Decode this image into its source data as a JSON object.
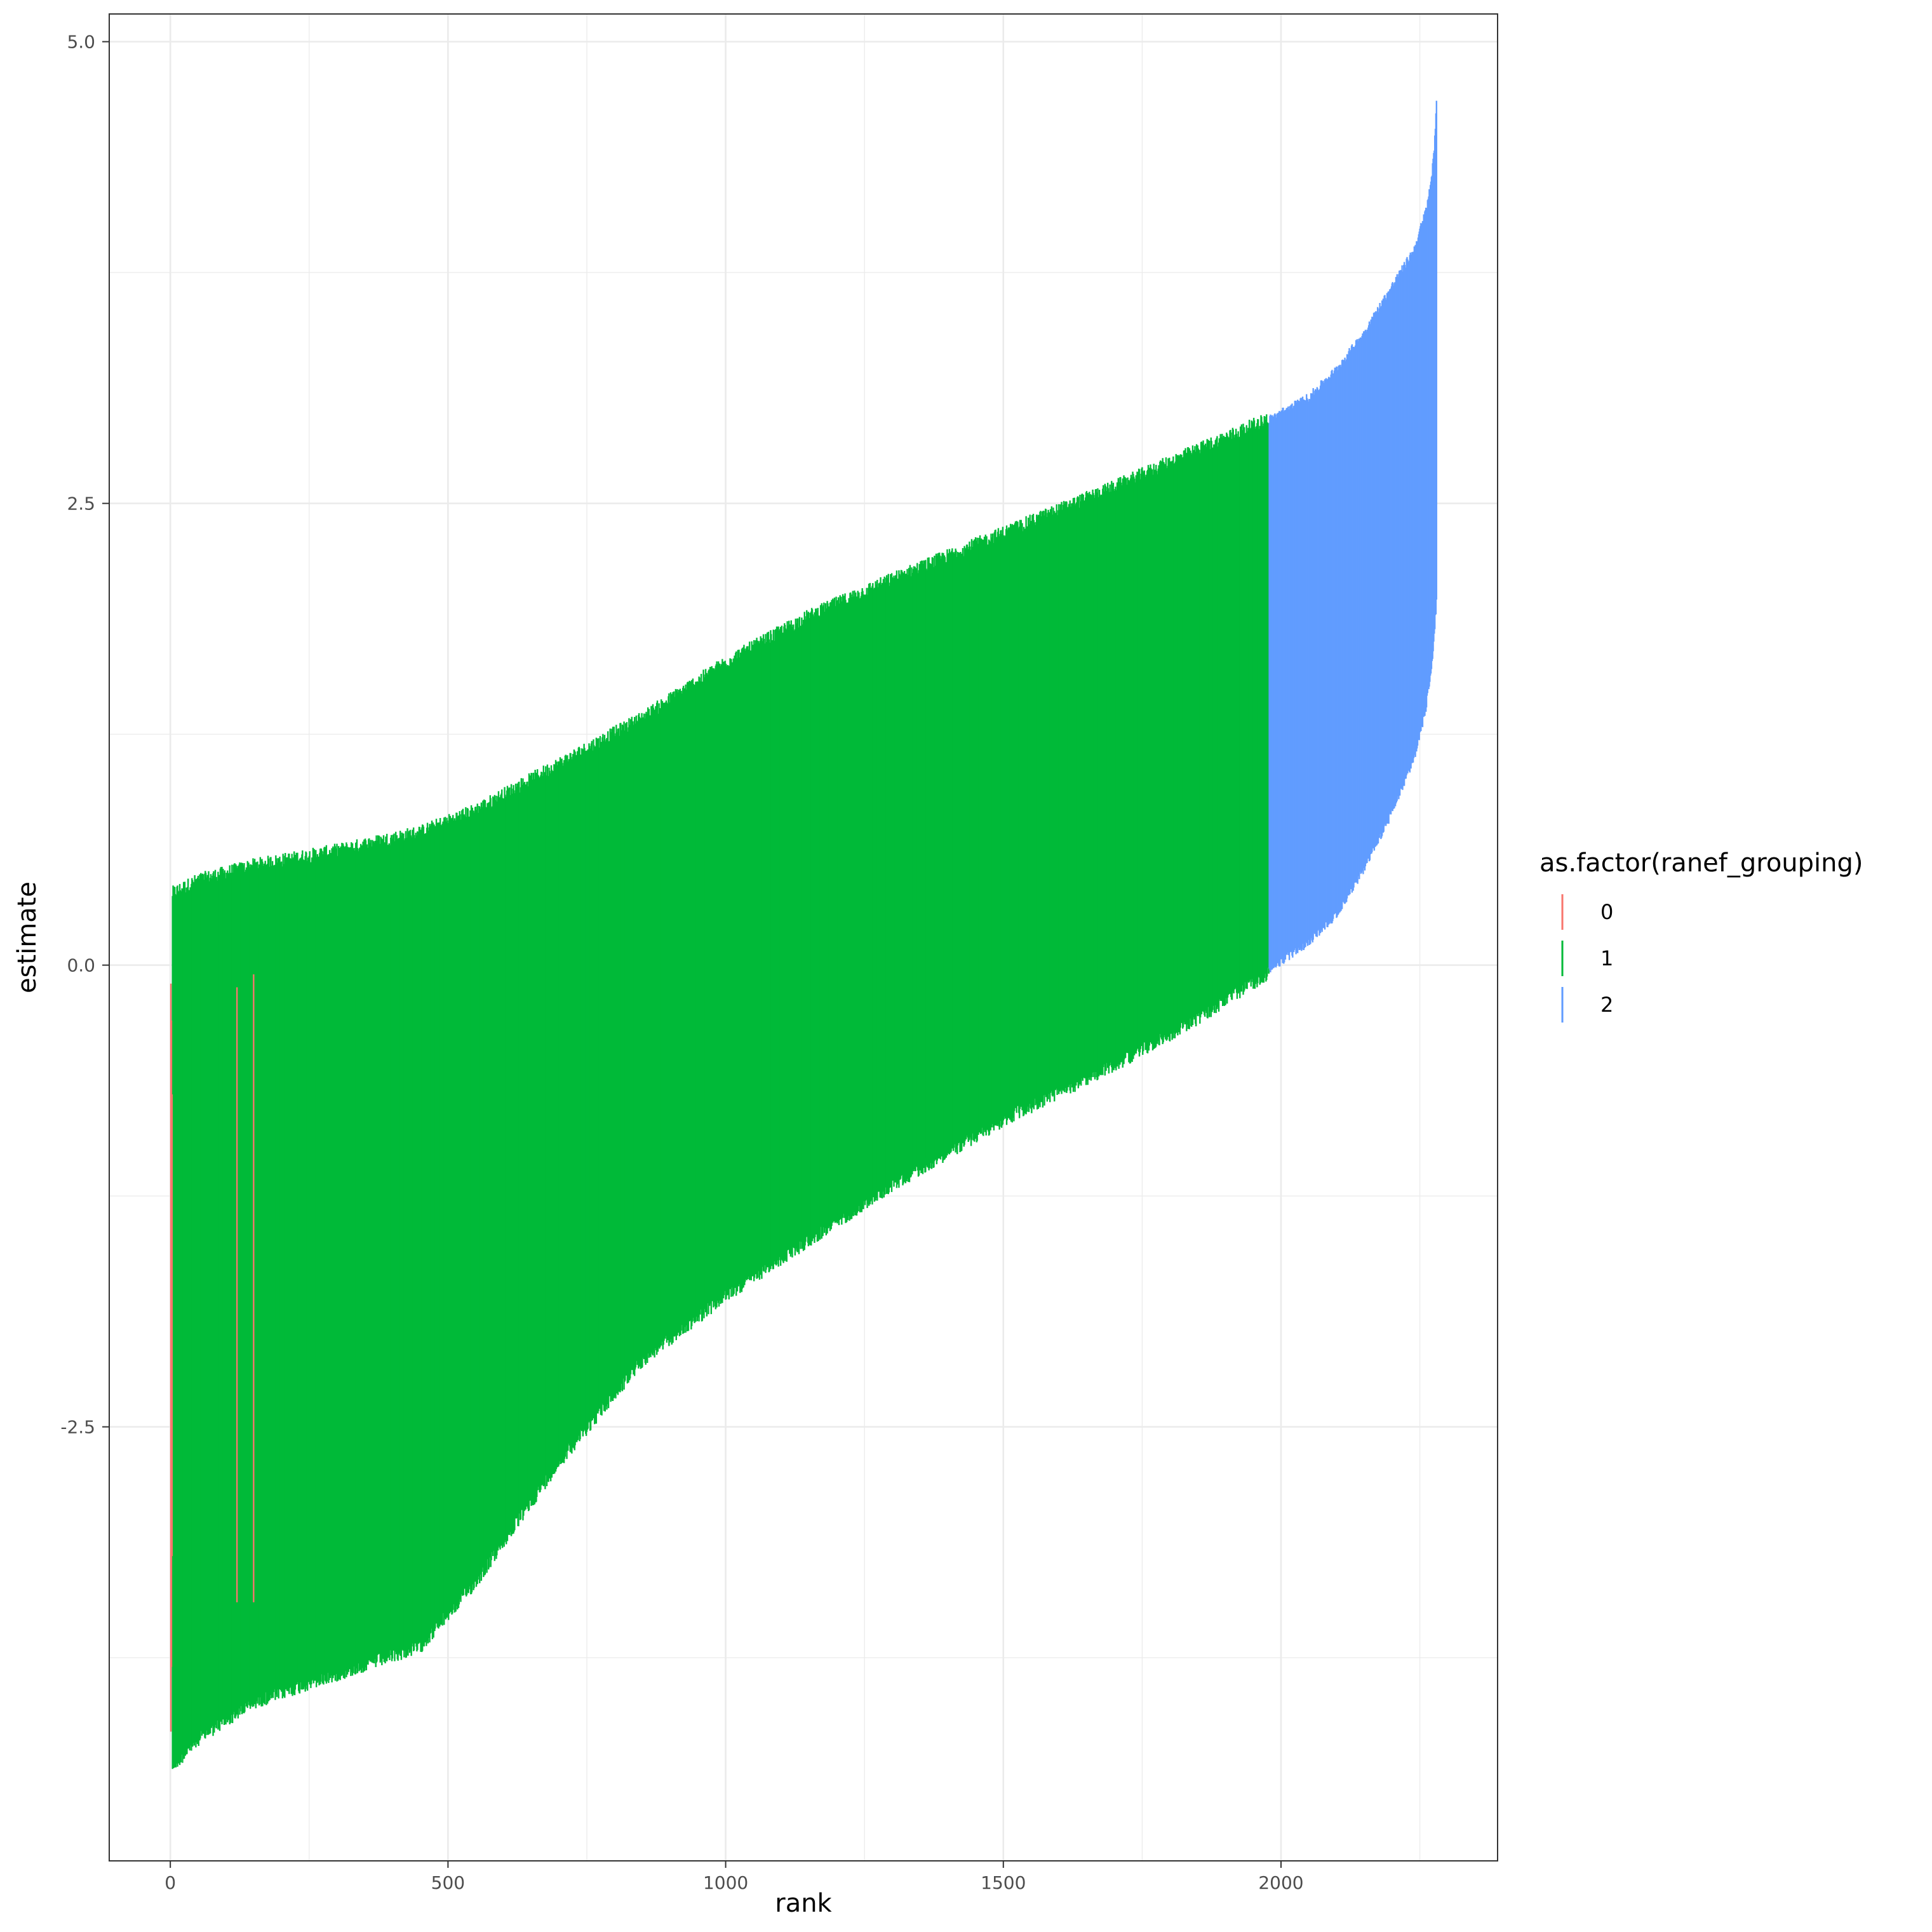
{
  "chart_data": {
    "type": "errorbar",
    "xlabel": "rank",
    "ylabel": "estimate",
    "xlim": [
      -110,
      2390
    ],
    "ylim": [
      -4.85,
      5.15
    ],
    "x_ticks": [
      0,
      500,
      1000,
      1500,
      2000
    ],
    "x_tick_labels": [
      "0",
      "500",
      "1000",
      "1500",
      "2000"
    ],
    "x_minor_ticks": [
      250,
      750,
      1250,
      1750,
      2250
    ],
    "y_ticks": [
      -2.5,
      0,
      2.5,
      5
    ],
    "y_tick_labels": [
      "-2.5",
      "0.0",
      "2.5",
      "5.0"
    ],
    "y_minor_ticks": [
      -3.75,
      -1.25,
      1.25,
      3.75
    ],
    "grid": true,
    "legend": {
      "title": "as.factor(ranef_grouping)",
      "position": "right",
      "entries": [
        {
          "label": "0",
          "color": "#F8766D"
        },
        {
          "label": "1",
          "color": "#00BA38"
        },
        {
          "label": "2",
          "color": "#619CFF"
        }
      ]
    },
    "series": [
      {
        "name": "0",
        "color": "#F8766D",
        "rank": [
          1,
          2,
          3,
          120,
          150
        ],
        "lower": [
          -4.15,
          -3.8,
          -3.2,
          -3.45,
          -3.45
        ],
        "upper": [
          -0.1,
          -0.3,
          -0.7,
          -0.12,
          -0.05
        ]
      },
      {
        "name": "1",
        "color": "#00BA38",
        "profile": {
          "rank": [
            4,
            50,
            150,
            300,
            450,
            550,
            700,
            850,
            1000,
            1150,
            1300,
            1500,
            1700,
            1850,
            1978
          ],
          "lower": [
            -4.3,
            -4.15,
            -3.95,
            -3.8,
            -3.65,
            -3.3,
            -2.65,
            -2.1,
            -1.75,
            -1.45,
            -1.15,
            -0.8,
            -0.5,
            -0.25,
            0.0
          ],
          "upper": [
            0.35,
            0.42,
            0.5,
            0.58,
            0.68,
            0.8,
            1.05,
            1.3,
            1.6,
            1.85,
            2.05,
            2.3,
            2.55,
            2.75,
            2.92
          ]
        }
      },
      {
        "name": "2",
        "color": "#619CFF",
        "profile": {
          "rank": [
            1979,
            2050,
            2100,
            2150,
            2200,
            2240,
            2260,
            2270,
            2276,
            2280
          ],
          "lower": [
            0.0,
            0.15,
            0.3,
            0.55,
            0.85,
            1.15,
            1.4,
            1.6,
            1.8,
            2.0
          ],
          "upper": [
            2.93,
            3.05,
            3.2,
            3.4,
            3.65,
            3.85,
            4.05,
            4.2,
            4.4,
            4.65
          ]
        }
      }
    ]
  }
}
